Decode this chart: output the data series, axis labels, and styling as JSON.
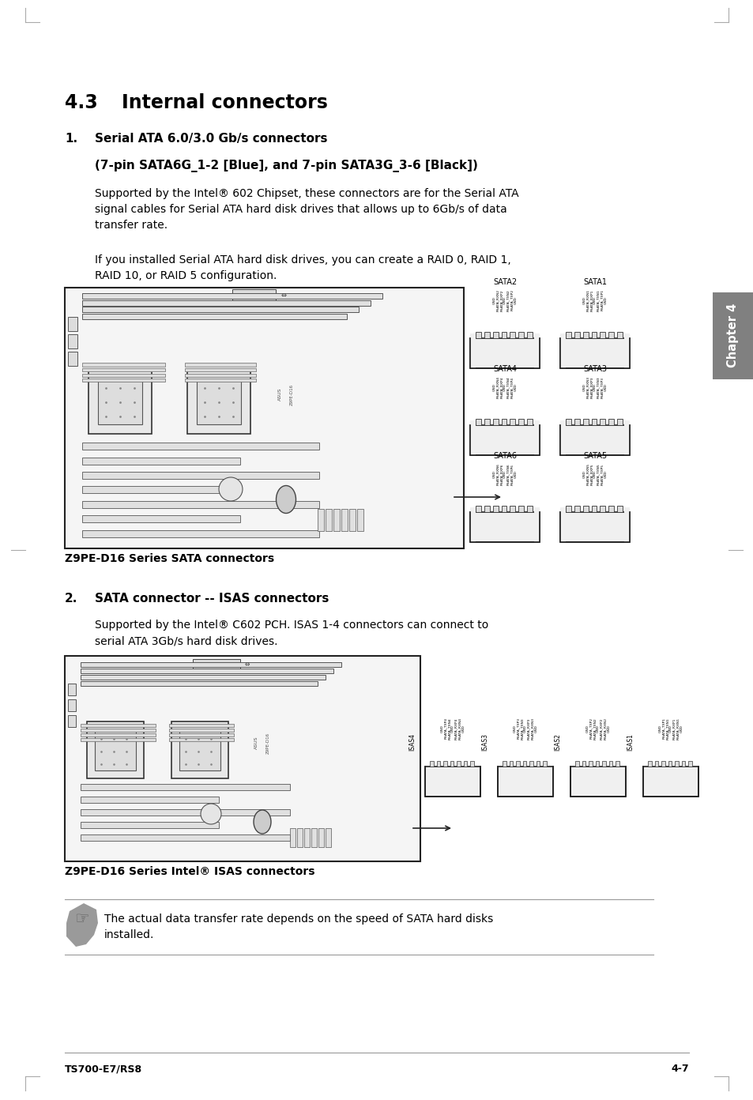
{
  "page_title_num": "4.3",
  "page_title_text": "Internal connectors",
  "section1_num": "1.",
  "section1_heading": "Serial ATA 6.0/3.0 Gb/s connectors",
  "section1_subheading": "(7-pin SATA6G_1-2 [Blue], and 7-pin SATA3G_3-6 [Black])",
  "section1_para1": "Supported by the Intel® 602 Chipset, these connectors are for the Serial ATA\nsignal cables for Serial ATA hard disk drives that allows up to 6Gb/s of data\ntransfer rate.",
  "section1_para2": "If you installed Serial ATA hard disk drives, you can create a RAID 0, RAID 1,\nRAID 10, or RAID 5 configuration.",
  "figure1_caption": "Z9PE-D16 Series SATA connectors",
  "section2_num": "2.",
  "section2_heading": "SATA connector -- ISAS connectors",
  "section2_para": "Supported by the Intel® C602 PCH. ISAS 1-4 connectors can connect to\nserial ATA 3Gb/s hard disk drives.",
  "figure2_caption": "Z9PE-D16 Series Intel® ISAS connectors",
  "note_text": "The actual data transfer rate depends on the speed of SATA hard disks\ninstalled.",
  "footer_left": "TS700-E7/RS8",
  "footer_right": "4-7",
  "chapter_tab": "Chapter 4",
  "bg_color": "#ffffff",
  "text_color": "#000000",
  "heading_color": "#000000",
  "tab_bg_color": "#808080",
  "tab_text_color": "#ffffff",
  "sata_labels_row1": [
    "SATA2",
    "SATA1"
  ],
  "sata_labels_row2": [
    "SATA4",
    "SATA3"
  ],
  "sata_labels_row3": [
    "SATA6",
    "SATA5"
  ],
  "sata_pins_row1_left": "GND\nRSATA_RXN2\nRSATA_RXP2\nGND\nRSATA_TXN2\nRSATA_TXP2\nGND",
  "sata_pins_row1_right": "GND\nRSATA_RXN1\nRSATA_RXP1\nGND\nRSATA_TXN1\nRSATA_TXP1\nGND",
  "sata_pins_row2_left": "GND\nRSATA_RXN4\nRSATA_RXP4\nGND\nRSATA_TXN4\nRSATA_TXP4\nGND",
  "sata_pins_row2_right": "GND\nRSATA_RXN3\nRSATA_RXP3\nGND\nRSATA_TXN3\nRSATA_TXP3\nGND",
  "sata_pins_row3_left": "GND\nRSATA_RXN6\nRSATA_RXP6\nGND\nRSATA_TXN6\nRSATA_TXP6\nGND",
  "sata_pins_row3_right": "GND\nRSATA_RXN5\nRSATA_RXP5\nGND\nRSATA_TXN5\nRSATA_TXP5\nGND",
  "isas_labels": [
    "ISAS4",
    "ISAS3",
    "ISAS2",
    "ISAS1"
  ],
  "isas_pins": [
    "GND\nRSATA_TXP4\nRSATA_TXN4\nGND\nRSATA_RXP4\nRSATA_RXN4\nGND",
    "GND\nRSATA_TXP3\nRSATA_TXN3\nGND\nRSATA_RXP3\nRSATA_RXN3\nGND",
    "GND\nRSATA_TXP2\nRSATA_TXN2\nGND\nRSATA_RXP2\nRSATA_RXN2\nGND",
    "GND\nRSATA_TXP1\nRSATA_TXN1\nGND\nRSATA_RXP1\nRSATA_RXN1\nGND"
  ]
}
